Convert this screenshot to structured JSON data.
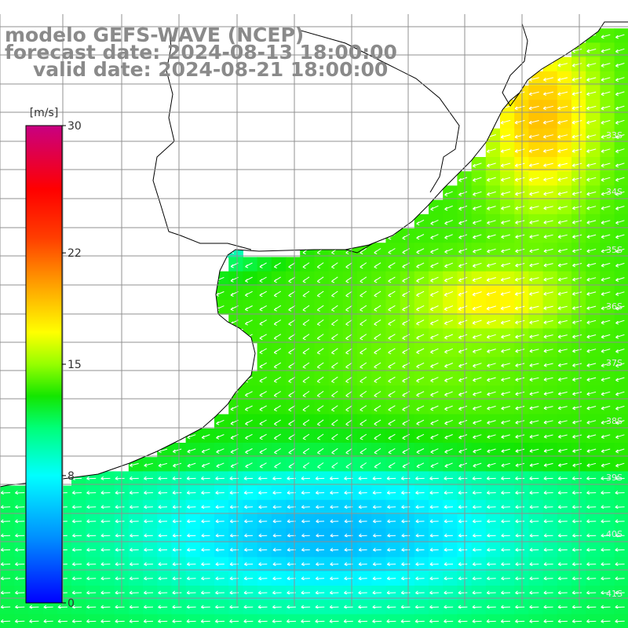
{
  "header": {
    "title": "modelo GEFS-WAVE (NCEP)",
    "forecast_date": "forecast date: 2024-08-13 18:00:00",
    "valid_date": "valid date: 2024-08-21 18:00:00"
  },
  "colorbar": {
    "unit": "[m/s]",
    "tick_labels": [
      "30",
      "22",
      "15",
      "8",
      "0"
    ],
    "tick_values": [
      30,
      22,
      15,
      8,
      0
    ],
    "min": 0,
    "max": 30
  },
  "map": {
    "lat_labels": [
      "33S",
      "34S",
      "35S",
      "36S",
      "37S",
      "38S",
      "39S",
      "40S",
      "41S"
    ],
    "field": "wind speed",
    "land_color": "#ffffff",
    "coast_color": "#000000",
    "grid_color": "#909090"
  }
}
